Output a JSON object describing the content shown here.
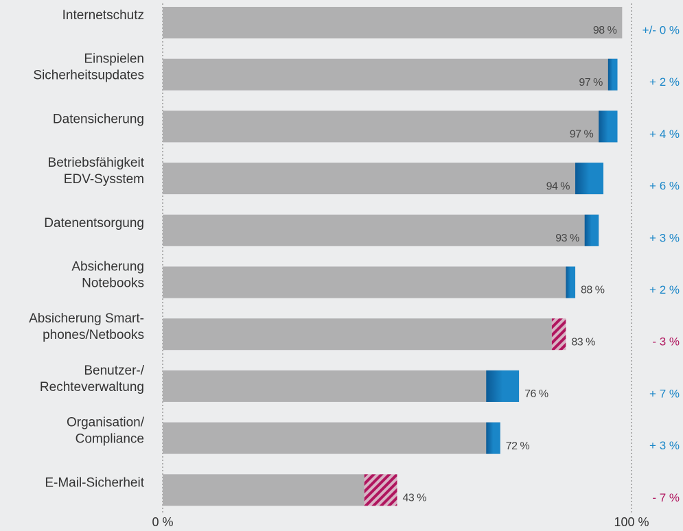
{
  "chart_data": {
    "type": "bar",
    "categories": [
      "Internetschutz",
      "Einspielen\nSicherheitsupdates",
      "Datensicherung",
      "Betriebsfähigkeit\nEDV-Sysstem",
      "Datenentsorgung",
      "Absicherung\nNotebooks",
      "Absicherung Smart-\nphones/Netbooks",
      "Benutzer-/\nRechteverwaltung",
      "Organisation/\nCompliance",
      "E-Mail-Sicherheit"
    ],
    "values": [
      98,
      97,
      97,
      94,
      93,
      88,
      83,
      76,
      72,
      43
    ],
    "value_labels": [
      "98 %",
      "97 %",
      "97 %",
      "94 %",
      "93 %",
      "88 %",
      "83 %",
      "76 %",
      "72 %",
      "43 %"
    ],
    "changes": [
      0,
      2,
      4,
      6,
      3,
      2,
      -3,
      7,
      3,
      -7
    ],
    "change_labels": [
      "+/- 0 %",
      "+ 2 %",
      "+ 4 %",
      "+ 6 %",
      "+ 3 %",
      "+ 2 %",
      "- 3 %",
      "+ 7 %",
      "+ 3 %",
      "- 7 %"
    ],
    "color": "#b0b0b1",
    "increase_color": "#1a86c8",
    "decrease_color": "#b0155e",
    "xlim": [
      0,
      100
    ],
    "xticks": [
      {
        "value": 0,
        "label": "0 %"
      },
      {
        "value": 100,
        "label": "100 %"
      }
    ]
  }
}
